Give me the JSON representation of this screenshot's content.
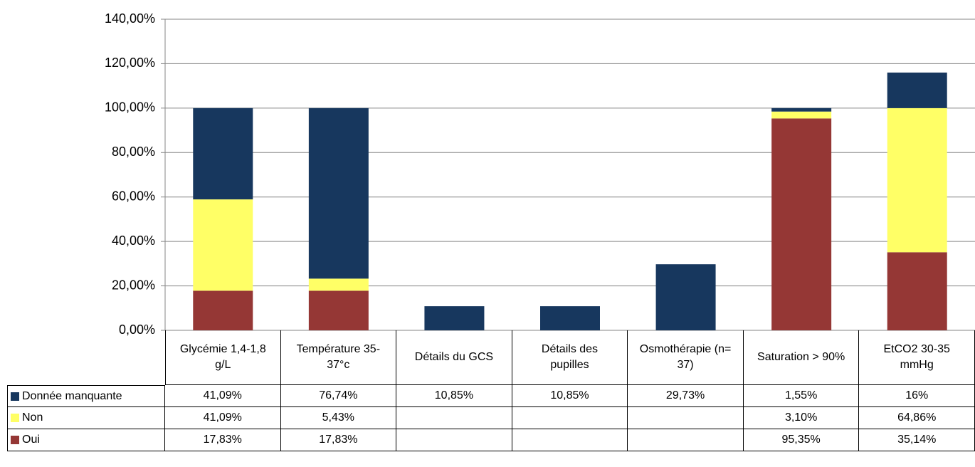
{
  "chart_data": {
    "type": "stacked_bar",
    "categories": [
      "Glycémie 1,4-1,8 g/L",
      "Température 35-37°c",
      "Détails du GCS",
      "Détails des pupilles",
      "Osmothérapie (n= 37)",
      "Saturation > 90%",
      "EtCO2 30-35 mmHg"
    ],
    "series": [
      {
        "name": "Oui",
        "color": "#953735",
        "values": [
          17.83,
          17.83,
          null,
          null,
          null,
          95.35,
          35.14
        ],
        "value_labels": [
          "17,83%",
          "17,83%",
          null,
          null,
          null,
          "95,35%",
          "35,14%"
        ]
      },
      {
        "name": "Non",
        "color": "#ffff66",
        "values": [
          41.09,
          5.43,
          null,
          null,
          null,
          3.1,
          64.86
        ],
        "value_labels": [
          "41,09%",
          "5,43%",
          null,
          null,
          null,
          "3,10%",
          "64,86%"
        ]
      },
      {
        "name": "Donnée manquante",
        "color": "#17375e",
        "values": [
          41.09,
          76.74,
          10.85,
          10.85,
          29.73,
          1.55,
          16
        ],
        "value_labels": [
          "41,09%",
          "76,74%",
          "10,85%",
          "10,85%",
          "29,73%",
          "1,55%",
          "16%"
        ]
      }
    ],
    "ylim": [
      0,
      140
    ],
    "yticks": [
      {
        "value": 0,
        "label": "0,00%"
      },
      {
        "value": 20,
        "label": "20,00%"
      },
      {
        "value": 40,
        "label": "40,00%"
      },
      {
        "value": 60,
        "label": "60,00%"
      },
      {
        "value": 80,
        "label": "80,00%"
      },
      {
        "value": 100,
        "label": "100,00%"
      },
      {
        "value": 120,
        "label": "120,00%"
      },
      {
        "value": 140,
        "label": "140,00%"
      }
    ],
    "grid": true,
    "table_row_order": [
      "Donnée manquante",
      "Non",
      "Oui"
    ]
  }
}
